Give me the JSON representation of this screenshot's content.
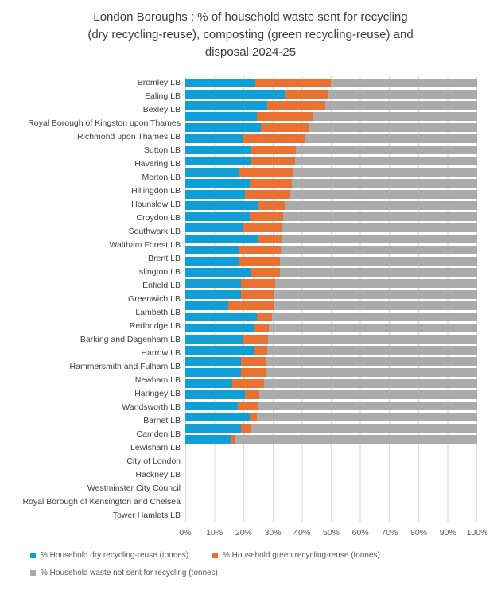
{
  "title": {
    "lines": [
      "London Boroughs : % of household waste sent for recycling",
      "(dry recycling-reuse), composting (green recycling-reuse) and",
      "disposal 2024-25"
    ]
  },
  "axis": {
    "ticks": [
      "0%",
      "10%",
      "20%",
      "30%",
      "40%",
      "50%",
      "60%",
      "70%",
      "80%",
      "90%",
      "100%"
    ]
  },
  "chart_data": {
    "type": "bar",
    "orientation": "horizontal",
    "stacked": true,
    "stack_total": 100,
    "title": "London Boroughs : % of household waste sent for recycling (dry recycling-reuse), composting (green recycling-reuse) and disposal 2024-25",
    "xlabel": "",
    "ylabel": "",
    "xlim": [
      0,
      100
    ],
    "x_tick_values": [
      0,
      10,
      20,
      30,
      40,
      50,
      60,
      70,
      80,
      90,
      100
    ],
    "grid": true,
    "legend_position": "bottom",
    "categories": [
      "Bromley LB",
      "Ealing LB",
      "Bexley LB",
      "Royal Borough of Kingston upon Thames",
      "Richmond upon Thames LB",
      "Sutton LB",
      "Havering LB",
      "Merton LB",
      "Hillingdon LB",
      "Hounslow LB",
      "Croydon LB",
      "Southwark LB",
      "Waltham Forest LB",
      "Brent LB",
      "Islington LB",
      "Enfield LB",
      "Greenwich LB",
      "Lambeth LB",
      "Redbridge LB",
      "Barking and Dagenham LB",
      "Harrow LB",
      "Hammersmith and Fulham LB",
      "Newham LB",
      "Haringey LB",
      "Wandsworth LB",
      "Barnet LB",
      "Camden LB",
      "Lewisham LB",
      "City of London",
      "Hackney LB",
      "Westminster City Council",
      "Royal Borough of Kensington and Chelsea",
      "Tower Hamlets LB"
    ],
    "series": [
      {
        "key": "dry-recycling",
        "name": "% Household dry recycling-reuse (tonnes)",
        "color": "#0F9ED5",
        "values": [
          24,
          34,
          28,
          24.5,
          26,
          19.5,
          22.5,
          22.5,
          18.5,
          22,
          20.5,
          25,
          22,
          19.5,
          25,
          18.5,
          18.5,
          22.5,
          19,
          19,
          14.7,
          24.5,
          23.5,
          20,
          23.4,
          19,
          19,
          16,
          20.5,
          18,
          22,
          19,
          15.5
        ]
      },
      {
        "key": "green-recycling",
        "name": "% Household green recycling-reuse (tonnes)",
        "color": "#E97132",
        "values": [
          26,
          15,
          20,
          19.5,
          16.5,
          21.5,
          15.5,
          15,
          18.5,
          14.5,
          15.5,
          9,
          11.5,
          13.5,
          8,
          14.2,
          14,
          9.8,
          11.7,
          11.6,
          15.8,
          5.3,
          5,
          8.4,
          4.6,
          8.6,
          8.4,
          11.1,
          4.8,
          6.7,
          2.5,
          3.5,
          1.5
        ]
      },
      {
        "key": "not-recycled",
        "name": "% Household waste not sent for recycling (tonnes)",
        "color": "#ABABAB",
        "values": [
          50,
          51,
          52,
          56,
          57.5,
          59,
          62,
          62.5,
          63,
          63.5,
          64,
          66,
          66.5,
          67,
          67,
          67.3,
          67.5,
          67.7,
          69.3,
          69.4,
          69.5,
          70.2,
          71.5,
          71.6,
          72,
          72.4,
          72.6,
          72.9,
          74.7,
          75.3,
          75.5,
          77.5,
          83
        ]
      }
    ]
  }
}
